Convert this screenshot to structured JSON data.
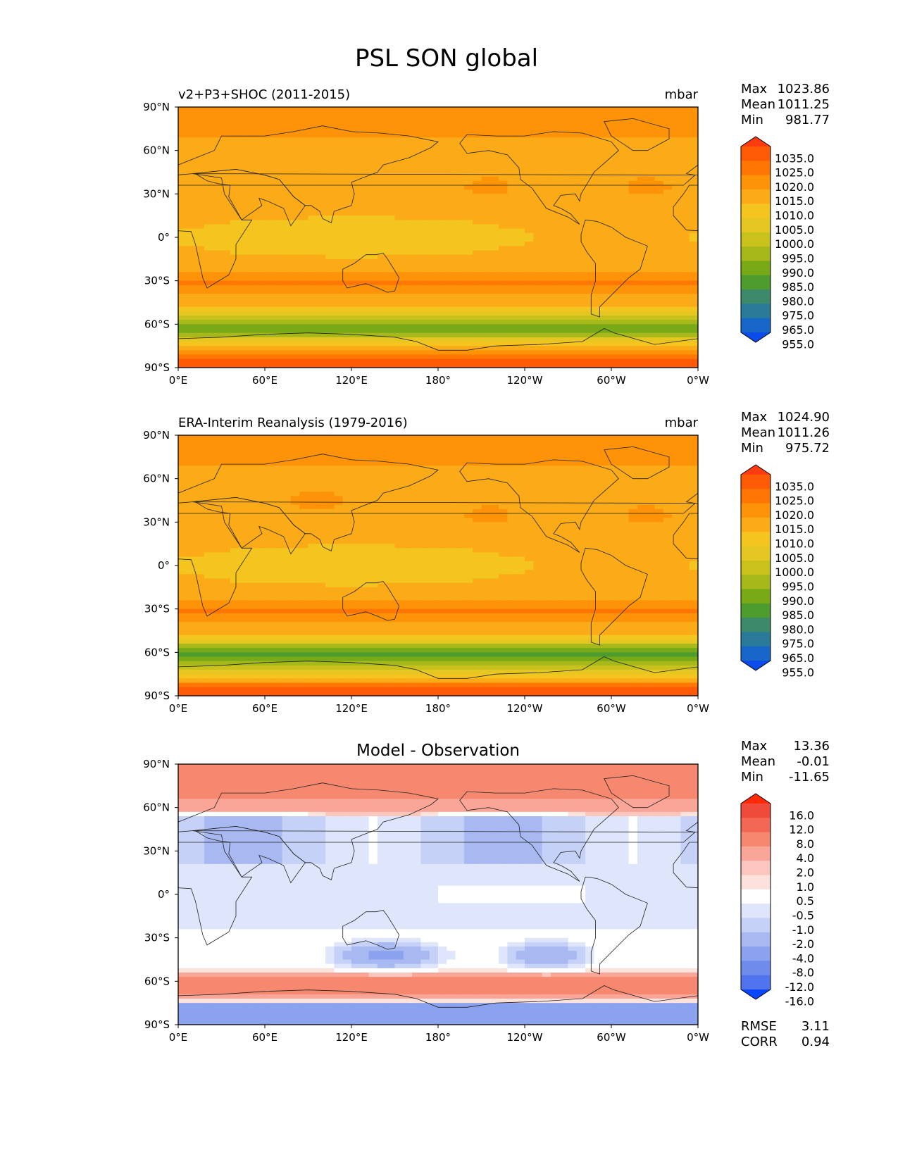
{
  "figure": {
    "title": "PSL SON global"
  },
  "chart_data": [
    {
      "type": "heatmap",
      "title": "v2+P3+SHOC (2011-2015)",
      "units": "mbar",
      "stats": [
        {
          "label": "Max",
          "value": "1023.86"
        },
        {
          "label": "Mean",
          "value": "1011.25"
        },
        {
          "label": "Min",
          "value": "981.77"
        }
      ],
      "colorbar": {
        "levels": [
          "1035.0",
          "1025.0",
          "1020.0",
          "1015.0",
          "1010.0",
          "1005.0",
          "1000.0",
          "995.0",
          "990.0",
          "985.0",
          "980.0",
          "975.0",
          "965.0",
          "955.0"
        ],
        "colors": [
          "#ff3b0f",
          "#ff5a05",
          "#ff7605",
          "#ff9308",
          "#fbab17",
          "#f5c51f",
          "#e6c621",
          "#c9c21d",
          "#a6b81a",
          "#78aa18",
          "#4e9c2d",
          "#3c8a6a",
          "#2a7a9a",
          "#1667c8",
          "#0a4bea"
        ]
      },
      "xlabel": "",
      "ylabel": "",
      "xticks": [
        "0°E",
        "60°E",
        "120°E",
        "180°",
        "120°W",
        "60°W",
        "0°W"
      ],
      "yticks": [
        "90°N",
        "60°N",
        "30°N",
        "0°",
        "30°S",
        "60°S",
        "90°S"
      ],
      "xlim": [
        0,
        360
      ],
      "ylim": [
        -90,
        90
      ]
    },
    {
      "type": "heatmap",
      "title": "ERA-Interim Reanalysis (1979-2016)",
      "units": "mbar",
      "stats": [
        {
          "label": "Max",
          "value": "1024.90"
        },
        {
          "label": "Mean",
          "value": "1011.26"
        },
        {
          "label": "Min",
          "value": "975.72"
        }
      ],
      "colorbar": {
        "levels": [
          "1035.0",
          "1025.0",
          "1020.0",
          "1015.0",
          "1010.0",
          "1005.0",
          "1000.0",
          "995.0",
          "990.0",
          "985.0",
          "980.0",
          "975.0",
          "965.0",
          "955.0"
        ],
        "colors": [
          "#ff3b0f",
          "#ff5a05",
          "#ff7605",
          "#ff9308",
          "#fbab17",
          "#f5c51f",
          "#e6c621",
          "#c9c21d",
          "#a6b81a",
          "#78aa18",
          "#4e9c2d",
          "#3c8a6a",
          "#2a7a9a",
          "#1667c8",
          "#0a4bea"
        ]
      },
      "xlabel": "",
      "ylabel": "",
      "xticks": [
        "0°E",
        "60°E",
        "120°E",
        "180°",
        "120°W",
        "60°W",
        "0°W"
      ],
      "yticks": [
        "90°N",
        "60°N",
        "30°N",
        "0°",
        "30°S",
        "60°S",
        "90°S"
      ],
      "xlim": [
        0,
        360
      ],
      "ylim": [
        -90,
        90
      ]
    },
    {
      "type": "heatmap",
      "title": "Model - Observation",
      "units": "",
      "stats": [
        {
          "label": "Max",
          "value": "13.36"
        },
        {
          "label": "Mean",
          "value": "-0.01"
        },
        {
          "label": "Min",
          "value": "-11.65"
        }
      ],
      "metrics": [
        {
          "label": "RMSE",
          "value": "3.11"
        },
        {
          "label": "CORR",
          "value": "0.94"
        }
      ],
      "colorbar": {
        "levels": [
          "16.0",
          "12.0",
          "8.0",
          "4.0",
          "2.0",
          "1.0",
          "0.5",
          "-0.5",
          "-1.0",
          "-2.0",
          "-4.0",
          "-8.0",
          "-12.0",
          "-16.0"
        ],
        "colors": [
          "#ff2a08",
          "#f04a3a",
          "#f36755",
          "#f5886f",
          "#f9a597",
          "#fbc6bd",
          "#fde2dc",
          "#ffffff",
          "#dfe6fb",
          "#c5d1f7",
          "#a8b9f2",
          "#8ba2ee",
          "#6f8cec",
          "#4f74ee",
          "#0a45ff"
        ]
      },
      "xlabel": "",
      "ylabel": "",
      "xticks": [
        "0°E",
        "60°E",
        "120°E",
        "180°",
        "120°W",
        "60°W",
        "0°W"
      ],
      "yticks": [
        "90°N",
        "60°N",
        "30°N",
        "0°",
        "30°S",
        "60°S",
        "90°S"
      ],
      "xlim": [
        0,
        360
      ],
      "ylim": [
        -90,
        90
      ]
    }
  ]
}
